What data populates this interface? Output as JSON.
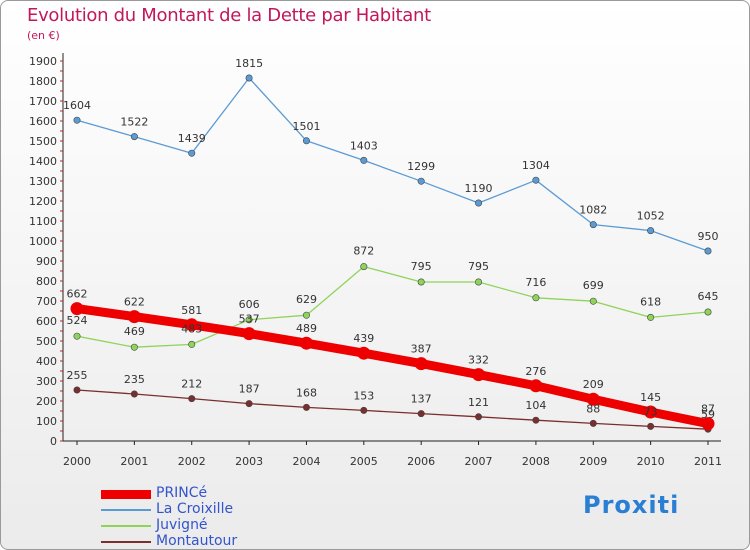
{
  "title": "Evolution du Montant de la Dette par Habitant",
  "subtitle": "(en €)",
  "logo": "Proxiti",
  "colors": {
    "title": "#c2185b",
    "legend_text": "#3355cc"
  },
  "chart_data": {
    "type": "line",
    "title": "Evolution du Montant de la Dette par Habitant",
    "subtitle": "(en €)",
    "x": [
      "2000",
      "2001",
      "2002",
      "2003",
      "2004",
      "2005",
      "2006",
      "2007",
      "2008",
      "2009",
      "2010",
      "2011"
    ],
    "ylim": [
      0,
      1900
    ],
    "yticks": [
      0,
      100,
      200,
      300,
      400,
      500,
      600,
      700,
      800,
      900,
      1000,
      1100,
      1200,
      1300,
      1400,
      1500,
      1600,
      1700,
      1800,
      1900
    ],
    "grid": false,
    "legend_position": "bottom-left",
    "series": [
      {
        "name": "PRINCé",
        "color": "#ee0000",
        "values": [
          662,
          622,
          581,
          537,
          489,
          439,
          387,
          332,
          276,
          209,
          145,
          87
        ]
      },
      {
        "name": "La Croixille",
        "color": "#5b9bd5",
        "values": [
          1604,
          1522,
          1439,
          1815,
          1501,
          1403,
          1299,
          1190,
          1304,
          1082,
          1052,
          950
        ]
      },
      {
        "name": "Juvigné",
        "color": "#8fd45a",
        "values": [
          524,
          469,
          483,
          606,
          629,
          872,
          795,
          795,
          716,
          699,
          618,
          645
        ]
      },
      {
        "name": "Montautour",
        "color": "#7a2e2e",
        "values": [
          255,
          235,
          212,
          187,
          168,
          153,
          137,
          121,
          104,
          88,
          73,
          59
        ]
      }
    ],
    "value_labels": {
      "PRINCé": [
        "662",
        "622",
        "581",
        "537",
        "489",
        "439",
        "387",
        "332",
        "276",
        "209",
        "145",
        "87"
      ],
      "La Croixille": [
        "1604",
        "1522",
        "1439",
        "1815",
        "1501",
        "1403",
        "1299",
        "1190",
        "1304",
        "1082",
        "1052",
        "950"
      ],
      "Juvigné": [
        "524",
        "469",
        "483",
        "606",
        "629",
        "872",
        "795",
        "795",
        "716",
        "699",
        "618",
        "645"
      ],
      "Montautour": [
        "255",
        "235",
        "212",
        "187",
        "168",
        "153",
        "137",
        "121",
        "104",
        "88",
        "73",
        "59"
      ]
    }
  }
}
